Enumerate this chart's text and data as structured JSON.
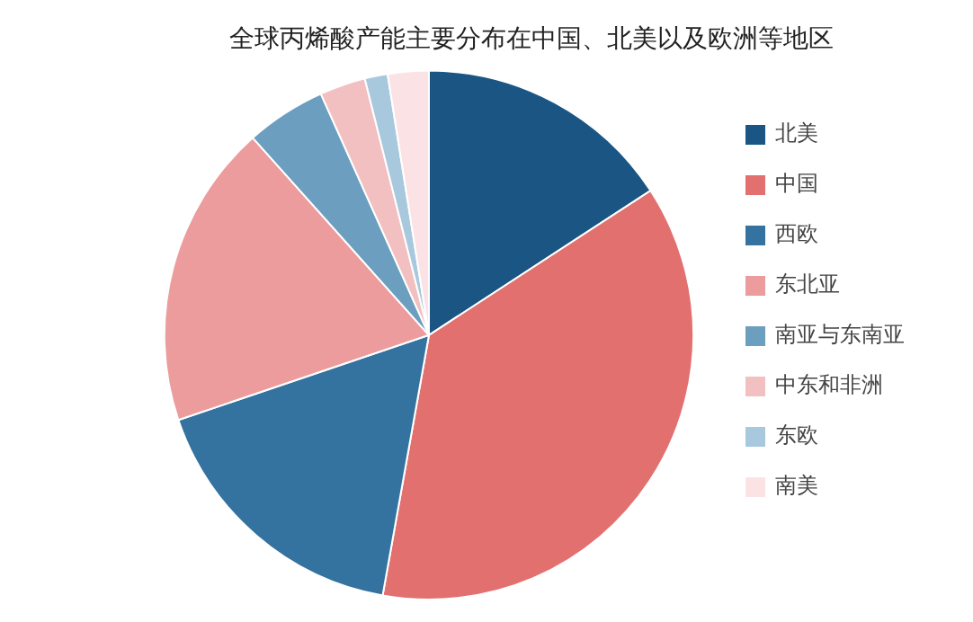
{
  "chart_data": {
    "type": "pie",
    "title": "全球丙烯酸产能主要分布在中国、北美以及欧洲等地区",
    "categories": [
      "北美",
      "中国",
      "西欧",
      "东北亚",
      "南亚与东南亚",
      "中东和非洲",
      "东欧",
      "南美"
    ],
    "values": [
      15.8,
      37.0,
      17.0,
      18.6,
      4.9,
      2.8,
      1.4,
      2.5
    ],
    "colors": [
      "#1a5583",
      "#e2706f",
      "#34739f",
      "#ec9c9c",
      "#6c9ec0",
      "#f2c0c0",
      "#a8c8de",
      "#fbe3e5"
    ],
    "legend": "right"
  }
}
